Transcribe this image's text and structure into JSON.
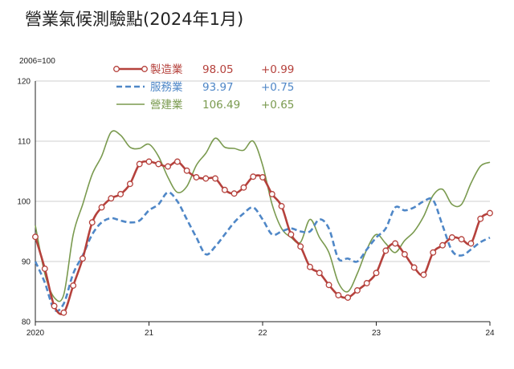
{
  "chart_data": {
    "type": "line",
    "title": "營業氣候測驗點(2024年1月)",
    "ylabel": "2006=100",
    "ylim": [
      80,
      120
    ],
    "yticks": [
      "80",
      "90",
      "100",
      "110",
      "120"
    ],
    "x_tick_labels": [
      "2020",
      "21",
      "22",
      "23",
      "24"
    ],
    "grid": "horizontal",
    "legend_position": "top-left",
    "series": [
      {
        "name": "製造業",
        "latest": "98.05",
        "change": "+0.99",
        "color": "#b5413c",
        "style": "solid-marker",
        "values": [
          94.1,
          88.8,
          82.6,
          81.5,
          86.0,
          90.5,
          96.5,
          99.0,
          100.5,
          101.2,
          102.9,
          106.2,
          106.6,
          106.2,
          105.8,
          106.6,
          105.1,
          104.0,
          103.8,
          103.8,
          101.9,
          101.3,
          102.3,
          104.1,
          104.0,
          101.2,
          99.2,
          94.5,
          92.5,
          89.1,
          88.1,
          86.1,
          84.4,
          84.0,
          85.2,
          86.4,
          88.1,
          91.8,
          93.0,
          91.2,
          89.0,
          87.8,
          91.5,
          92.7,
          94.0,
          93.7,
          93.0,
          97.1,
          98.05
        ]
      },
      {
        "name": "服務業",
        "latest": "93.97",
        "change": "+0.75",
        "color": "#4f87c7",
        "style": "dashed",
        "values": [
          90.0,
          86.5,
          82.0,
          83.0,
          88.0,
          91.0,
          94.5,
          96.5,
          97.2,
          96.8,
          96.5,
          96.8,
          98.5,
          99.5,
          101.5,
          100.0,
          97.0,
          94.0,
          91.2,
          92.5,
          94.5,
          96.5,
          98.0,
          99.0,
          97.0,
          94.5,
          95.0,
          95.5,
          95.0,
          95.0,
          97.0,
          95.5,
          90.5,
          90.5,
          90.0,
          92.0,
          94.0,
          95.5,
          99.0,
          98.5,
          99.0,
          100.0,
          100.2,
          96.0,
          91.8,
          91.0,
          92.0,
          93.22,
          93.97
        ]
      },
      {
        "name": "營建業",
        "latest": "106.49",
        "change": "+0.65",
        "color": "#7a9a4f",
        "style": "solid",
        "values": [
          96.0,
          88.0,
          84.0,
          84.5,
          94.5,
          99.5,
          104.5,
          107.5,
          111.5,
          111.0,
          109.0,
          108.8,
          109.5,
          107.5,
          104.0,
          101.5,
          102.5,
          106.0,
          108.0,
          110.5,
          109.0,
          108.8,
          108.5,
          110.0,
          106.0,
          99.5,
          95.5,
          94.0,
          93.2,
          97.0,
          94.0,
          91.5,
          86.5,
          85.0,
          88.0,
          92.0,
          94.5,
          93.0,
          91.5,
          93.5,
          95.0,
          97.5,
          101.0,
          102.0,
          99.5,
          99.5,
          103.0,
          105.84,
          106.49
        ]
      }
    ]
  }
}
